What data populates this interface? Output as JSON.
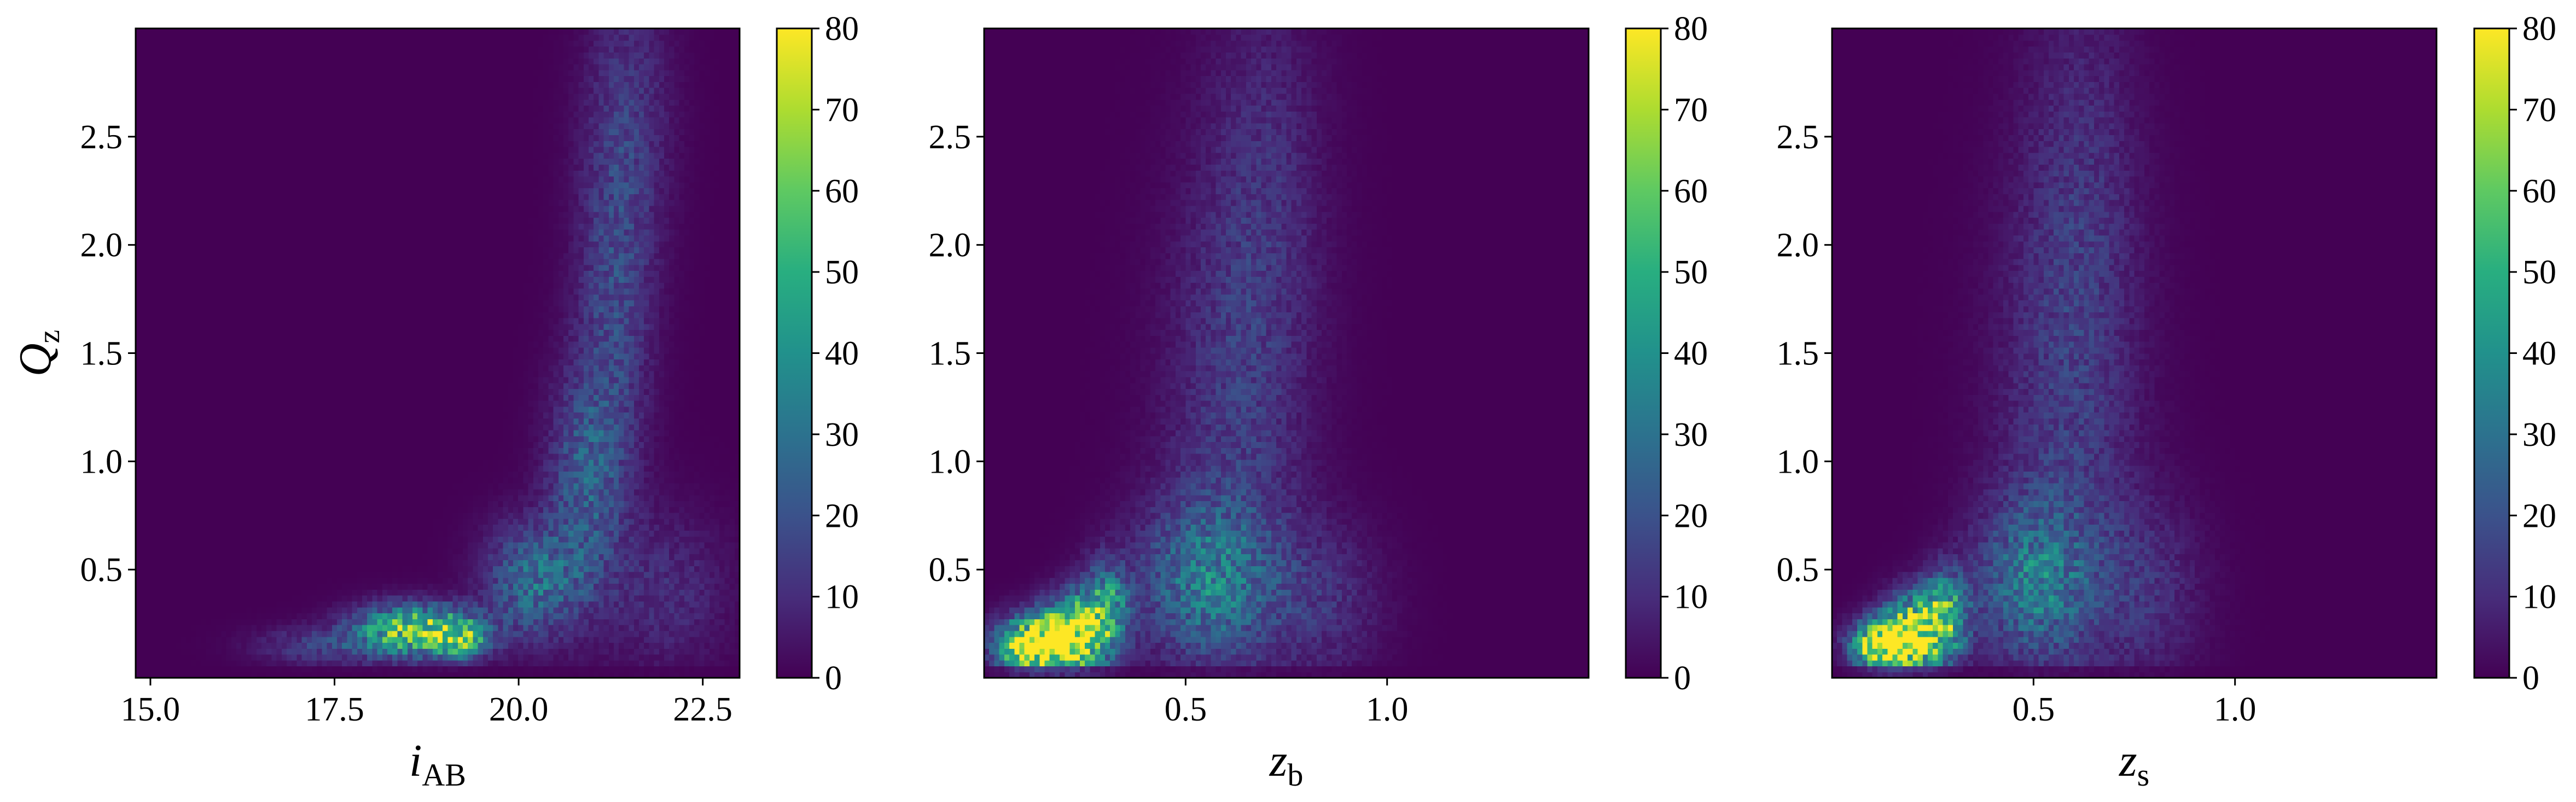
{
  "chart_data": [
    {
      "type": "heatmap",
      "colormap": "viridis",
      "xlabel": "i",
      "xlabel_sub": "AB",
      "ylabel": "Q",
      "ylabel_sub": "z",
      "xlim": [
        14.8,
        23.0
      ],
      "ylim": [
        0.0,
        3.0
      ],
      "xticks": [
        15.0,
        17.5,
        20.0,
        22.5
      ],
      "xtick_labels": [
        "15.0",
        "17.5",
        "20.0",
        "22.5"
      ],
      "yticks": [
        0.5,
        1.0,
        1.5,
        2.0,
        2.5
      ],
      "ytick_labels": [
        "0.5",
        "1.0",
        "1.5",
        "2.0",
        "2.5"
      ],
      "colorbar": {
        "range": [
          0,
          80
        ],
        "ticks": [
          0,
          10,
          20,
          30,
          40,
          50,
          60,
          70,
          80
        ],
        "tick_labels": [
          "0",
          "10",
          "20",
          "30",
          "40",
          "50",
          "60",
          "70",
          "80"
        ]
      },
      "density_blobs": [
        {
          "x": 18.6,
          "y": 0.22,
          "sx": 0.55,
          "sy": 0.08,
          "peak": 62
        },
        {
          "x": 19.2,
          "y": 0.18,
          "sx": 0.25,
          "sy": 0.06,
          "peak": 40
        },
        {
          "x": 20.2,
          "y": 0.45,
          "sx": 0.45,
          "sy": 0.18,
          "peak": 28
        },
        {
          "x": 20.9,
          "y": 0.9,
          "sx": 0.35,
          "sy": 0.35,
          "peak": 22
        },
        {
          "x": 21.3,
          "y": 1.7,
          "sx": 0.35,
          "sy": 0.55,
          "peak": 16
        },
        {
          "x": 21.5,
          "y": 2.6,
          "sx": 0.4,
          "sy": 0.45,
          "peak": 11
        },
        {
          "x": 17.3,
          "y": 0.15,
          "sx": 0.6,
          "sy": 0.06,
          "peak": 14
        },
        {
          "x": 22.0,
          "y": 0.4,
          "sx": 0.6,
          "sy": 0.25,
          "peak": 10
        }
      ]
    },
    {
      "type": "heatmap",
      "colormap": "viridis",
      "xlabel": "z",
      "xlabel_sub": "b",
      "ylabel": "",
      "ylabel_sub": "",
      "xlim": [
        0.0,
        1.5
      ],
      "ylim": [
        0.0,
        3.0
      ],
      "xticks": [
        0.5,
        1.0
      ],
      "xtick_labels": [
        "0.5",
        "1.0"
      ],
      "yticks": [
        0.5,
        1.0,
        1.5,
        2.0,
        2.5
      ],
      "ytick_labels": [
        "0.5",
        "1.0",
        "1.5",
        "2.0",
        "2.5"
      ],
      "colorbar": {
        "range": [
          0,
          80
        ],
        "ticks": [
          0,
          10,
          20,
          30,
          40,
          50,
          60,
          70,
          80
        ],
        "tick_labels": [
          "0",
          "10",
          "20",
          "30",
          "40",
          "50",
          "60",
          "70",
          "80"
        ]
      },
      "density_blobs": [
        {
          "x": 0.12,
          "y": 0.15,
          "sx": 0.06,
          "sy": 0.09,
          "peak": 85
        },
        {
          "x": 0.22,
          "y": 0.2,
          "sx": 0.05,
          "sy": 0.12,
          "peak": 70
        },
        {
          "x": 0.3,
          "y": 0.3,
          "sx": 0.04,
          "sy": 0.15,
          "peak": 45
        },
        {
          "x": 0.55,
          "y": 0.45,
          "sx": 0.12,
          "sy": 0.25,
          "peak": 28
        },
        {
          "x": 0.62,
          "y": 1.2,
          "sx": 0.12,
          "sy": 0.8,
          "peak": 12
        },
        {
          "x": 0.7,
          "y": 2.3,
          "sx": 0.1,
          "sy": 0.7,
          "peak": 8
        },
        {
          "x": 0.85,
          "y": 0.35,
          "sx": 0.1,
          "sy": 0.25,
          "peak": 10
        }
      ]
    },
    {
      "type": "heatmap",
      "colormap": "viridis",
      "xlabel": "z",
      "xlabel_sub": "s",
      "ylabel": "",
      "ylabel_sub": "",
      "xlim": [
        0.0,
        1.5
      ],
      "ylim": [
        0.0,
        3.0
      ],
      "xticks": [
        0.5,
        1.0
      ],
      "xtick_labels": [
        "0.5",
        "1.0"
      ],
      "yticks": [
        0.5,
        1.0,
        1.5,
        2.0,
        2.5
      ],
      "ytick_labels": [
        "0.5",
        "1.0",
        "1.5",
        "2.0",
        "2.5"
      ],
      "colorbar": {
        "range": [
          0,
          80
        ],
        "ticks": [
          0,
          10,
          20,
          30,
          40,
          50,
          60,
          70,
          80
        ],
        "tick_labels": [
          "0",
          "10",
          "20",
          "30",
          "40",
          "50",
          "60",
          "70",
          "80"
        ]
      },
      "density_blobs": [
        {
          "x": 0.12,
          "y": 0.15,
          "sx": 0.05,
          "sy": 0.08,
          "peak": 75
        },
        {
          "x": 0.2,
          "y": 0.2,
          "sx": 0.05,
          "sy": 0.12,
          "peak": 70
        },
        {
          "x": 0.28,
          "y": 0.28,
          "sx": 0.04,
          "sy": 0.14,
          "peak": 50
        },
        {
          "x": 0.5,
          "y": 0.45,
          "sx": 0.1,
          "sy": 0.25,
          "peak": 28
        },
        {
          "x": 0.58,
          "y": 1.2,
          "sx": 0.12,
          "sy": 0.8,
          "peak": 12
        },
        {
          "x": 0.62,
          "y": 2.3,
          "sx": 0.1,
          "sy": 0.7,
          "peak": 8
        },
        {
          "x": 0.78,
          "y": 0.4,
          "sx": 0.1,
          "sy": 0.3,
          "peak": 10
        }
      ]
    }
  ]
}
